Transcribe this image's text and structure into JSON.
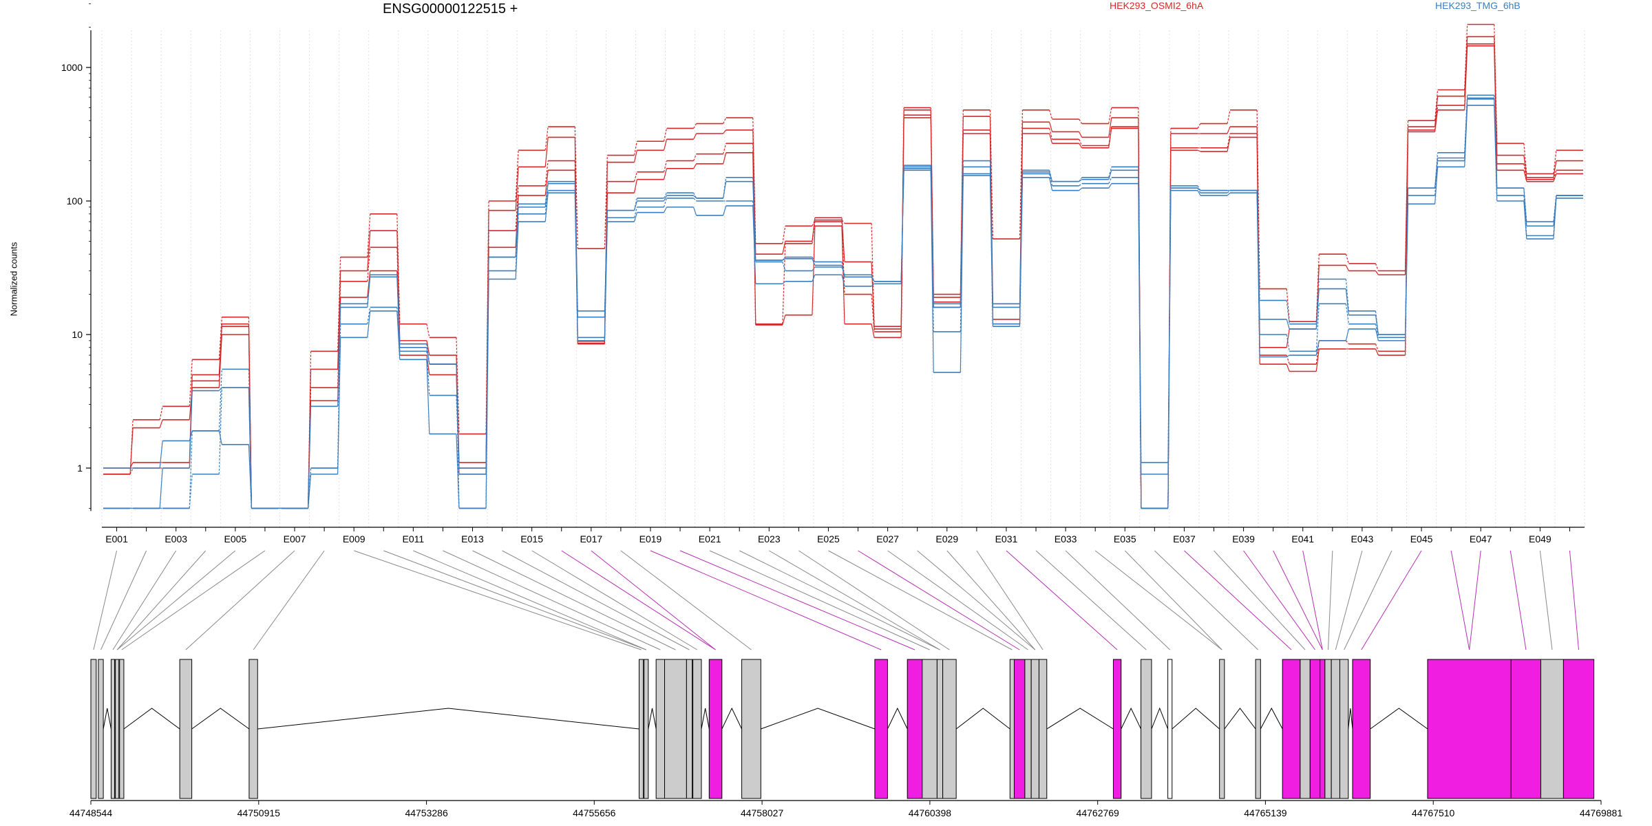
{
  "chart_data": {
    "type": "line",
    "title": "ENSG00000122515 +",
    "ylabel": "Normalized counts",
    "xlabel": "",
    "yscale": "log",
    "ylim": [
      0.5,
      3000
    ],
    "yticks": [
      1,
      10,
      100,
      1000
    ],
    "ytick_labels": [
      "1",
      "10",
      "100",
      "1000"
    ],
    "grid": "vertical-dotted",
    "legend": "top",
    "series_colors": {
      "HEK293_OSMI2_6hA": "#d62728",
      "HEK293_TMG_6hB": "#3a7ebf"
    },
    "exons": [
      "E001",
      "E002",
      "E003",
      "E004",
      "E005",
      "E006",
      "E007",
      "E008",
      "E009",
      "E010",
      "E011",
      "E012",
      "E013",
      "E014",
      "E015",
      "E016",
      "E017",
      "E018",
      "E019",
      "E020",
      "E021",
      "E022",
      "E023",
      "E024",
      "E025",
      "E026",
      "E027",
      "E028",
      "E029",
      "E030",
      "E031",
      "E032",
      "E033",
      "E034",
      "E035",
      "E036",
      "E037",
      "E038",
      "E039",
      "E040",
      "E041",
      "E042",
      "E043",
      "E044",
      "E045",
      "E046",
      "E047",
      "E048",
      "E049",
      "E050"
    ],
    "exon_tick_labels": [
      "E001",
      "E003",
      "E005",
      "E007",
      "E009",
      "E011",
      "E013",
      "E015",
      "E017",
      "E019",
      "E021",
      "E023",
      "E025",
      "E027",
      "E029",
      "E031",
      "E033",
      "E035",
      "E037",
      "E039",
      "E041",
      "E043",
      "E045",
      "E047",
      "E049"
    ],
    "series": [
      {
        "group": "HEK293_OSMI2_6hA",
        "style": "solid",
        "values": [
          0.9,
          2.0,
          2.3,
          4.0,
          10.0,
          0.5,
          0.5,
          3.2,
          19,
          30,
          7.0,
          5.0,
          0.9,
          45,
          110,
          170,
          8.5,
          115,
          145,
          175,
          190,
          230,
          11.8,
          14.0,
          65,
          12,
          9.5,
          420,
          16,
          320,
          12,
          320,
          270,
          250,
          350,
          0.5,
          240,
          235,
          300,
          6.0,
          5.3,
          7.8,
          7.8,
          7.0,
          330,
          480,
          1450,
          170,
          140,
          160
        ]
      },
      {
        "group": "HEK293_OSMI2_6hA",
        "style": "dashed",
        "values": [
          0.9,
          1.0,
          1.0,
          4.5,
          11.5,
          0.5,
          0.5,
          4.0,
          25,
          45,
          8.5,
          6.0,
          1.0,
          60,
          130,
          200,
          8.6,
          140,
          165,
          200,
          225,
          270,
          12.0,
          48,
          70,
          20,
          10.5,
          440,
          17.5,
          340,
          13,
          350,
          290,
          260,
          360,
          0.5,
          250,
          250,
          320,
          7.0,
          6.0,
          9.0,
          8.5,
          7.5,
          340,
          520,
          1500,
          190,
          145,
          170
        ]
      },
      {
        "group": "HEK293_OSMI2_6hA",
        "style": "solid",
        "values": [
          1.0,
          1.1,
          1.1,
          5.0,
          12.0,
          0.5,
          0.5,
          5.5,
          30,
          60,
          9.0,
          7.0,
          1.1,
          85,
          180,
          300,
          8.9,
          195,
          240,
          290,
          320,
          340,
          40,
          50,
          75,
          35,
          11.0,
          480,
          19,
          430,
          17,
          390,
          330,
          300,
          420,
          0.5,
          320,
          320,
          360,
          8.0,
          11,
          33,
          30,
          28,
          360,
          610,
          1700,
          220,
          150,
          200
        ]
      },
      {
        "group": "HEK293_OSMI2_6hA",
        "style": "dashed",
        "values": [
          0.9,
          2.3,
          2.9,
          6.5,
          13.5,
          0.5,
          0.5,
          7.5,
          38,
          80,
          12,
          9.5,
          1.8,
          100,
          240,
          360,
          44,
          220,
          280,
          350,
          380,
          420,
          48,
          65,
          72,
          68,
          11.5,
          500,
          20,
          480,
          52,
          480,
          410,
          380,
          500,
          0.5,
          350,
          380,
          480,
          22,
          12.5,
          40,
          34,
          30,
          400,
          680,
          2100,
          270,
          160,
          240
        ]
      },
      {
        "group": "HEK293_TMG_6hB",
        "style": "solid",
        "values": [
          1.0,
          1.0,
          1.6,
          1.9,
          1.5,
          0.5,
          0.5,
          0.9,
          9.5,
          15,
          6.5,
          1.8,
          0.5,
          26,
          70,
          115,
          9.0,
          70,
          82,
          90,
          78,
          92,
          24,
          25,
          28,
          23,
          24,
          170,
          5.2,
          155,
          11.5,
          150,
          120,
          125,
          135,
          0.5,
          120,
          110,
          115,
          6.8,
          7.0,
          9.0,
          11,
          9.0,
          95,
          180,
          520,
          100,
          52,
          105
        ]
      },
      {
        "group": "HEK293_TMG_6hB",
        "style": "dashed",
        "values": [
          0.5,
          0.5,
          0.5,
          0.9,
          4.0,
          0.5,
          0.5,
          1.0,
          12,
          16,
          7.5,
          3.5,
          0.9,
          30,
          80,
          120,
          9.5,
          75,
          90,
          105,
          100,
          100,
          35,
          30,
          32,
          28,
          25,
          175,
          10.5,
          160,
          12,
          160,
          130,
          135,
          150,
          0.5,
          125,
          115,
          120,
          10,
          7.5,
          17,
          12,
          9.5,
          110,
          200,
          580,
          110,
          55,
          110
        ]
      },
      {
        "group": "HEK293_TMG_6hB",
        "style": "solid",
        "values": [
          0.5,
          0.5,
          1.0,
          3.8,
          4.0,
          0.5,
          0.5,
          2.9,
          16,
          27,
          8.0,
          6.0,
          1.0,
          38,
          90,
          135,
          13.5,
          85,
          100,
          110,
          105,
          140,
          36,
          37,
          33,
          27,
          25,
          180,
          16,
          180,
          16,
          165,
          140,
          145,
          170,
          0.9,
          125,
          120,
          120,
          13,
          11,
          22,
          14,
          10,
          125,
          210,
          590,
          125,
          65,
          110
        ]
      },
      {
        "group": "HEK293_TMG_6hB",
        "style": "dashed",
        "values": [
          0.5,
          0.5,
          0.5,
          1.9,
          5.5,
          0.5,
          0.5,
          1.0,
          17,
          28,
          8.5,
          6.0,
          0.5,
          38,
          95,
          140,
          15,
          85,
          105,
          115,
          105,
          150,
          36,
          38,
          35,
          27,
          25,
          185,
          17,
          200,
          17,
          170,
          140,
          150,
          180,
          1.1,
          130,
          120,
          120,
          18,
          12,
          26,
          15,
          10,
          125,
          230,
          620,
          125,
          70,
          110
        ]
      }
    ],
    "genomic_axis": {
      "tick_labels": [
        "44748544",
        "44750915",
        "44753286",
        "44755656",
        "44758027",
        "44760398",
        "44762769",
        "44765139",
        "44767510",
        "44769881"
      ],
      "range": [
        44748544,
        44769881
      ]
    },
    "exon_model_colors": {
      "constitutive": "#cccccc",
      "significant": "#f01ee0",
      "unexpressed": "#ffffff"
    },
    "exon_model": [
      {
        "start": 44748544,
        "end": 44748620,
        "type": "constitutive"
      },
      {
        "start": 44748650,
        "end": 44748720,
        "type": "constitutive"
      },
      {
        "start": 44748830,
        "end": 44748880,
        "type": "constitutive"
      },
      {
        "start": 44748890,
        "end": 44748940,
        "type": "constitutive"
      },
      {
        "start": 44748950,
        "end": 44749010,
        "type": "constitutive"
      },
      {
        "start": 44749800,
        "end": 44749970,
        "type": "constitutive"
      },
      {
        "start": 44750780,
        "end": 44750900,
        "type": "constitutive"
      },
      {
        "start": 44756290,
        "end": 44756350,
        "type": "constitutive"
      },
      {
        "start": 44756360,
        "end": 44756420,
        "type": "constitutive"
      },
      {
        "start": 44756530,
        "end": 44756650,
        "type": "constitutive"
      },
      {
        "start": 44756650,
        "end": 44756960,
        "type": "constitutive"
      },
      {
        "start": 44756960,
        "end": 44757040,
        "type": "constitutive"
      },
      {
        "start": 44757050,
        "end": 44757170,
        "type": "constitutive"
      },
      {
        "start": 44757280,
        "end": 44757460,
        "type": "significant"
      },
      {
        "start": 44757740,
        "end": 44758010,
        "type": "constitutive"
      },
      {
        "start": 44759620,
        "end": 44759800,
        "type": "significant"
      },
      {
        "start": 44760080,
        "end": 44760290,
        "type": "significant"
      },
      {
        "start": 44760290,
        "end": 44760500,
        "type": "constitutive"
      },
      {
        "start": 44760500,
        "end": 44760580,
        "type": "constitutive"
      },
      {
        "start": 44760580,
        "end": 44760770,
        "type": "constitutive"
      },
      {
        "start": 44761530,
        "end": 44761590,
        "type": "constitutive"
      },
      {
        "start": 44761590,
        "end": 44761740,
        "type": "significant"
      },
      {
        "start": 44761740,
        "end": 44761830,
        "type": "constitutive"
      },
      {
        "start": 44761830,
        "end": 44761940,
        "type": "constitutive"
      },
      {
        "start": 44761940,
        "end": 44762050,
        "type": "constitutive"
      },
      {
        "start": 44762990,
        "end": 44763100,
        "type": "significant"
      },
      {
        "start": 44763380,
        "end": 44763530,
        "type": "constitutive"
      },
      {
        "start": 44763760,
        "end": 44763820,
        "type": "unexpressed"
      },
      {
        "start": 44764490,
        "end": 44764560,
        "type": "constitutive"
      },
      {
        "start": 44765000,
        "end": 44765070,
        "type": "constitutive"
      },
      {
        "start": 44765380,
        "end": 44765630,
        "type": "significant"
      },
      {
        "start": 44765630,
        "end": 44765770,
        "type": "constitutive"
      },
      {
        "start": 44765770,
        "end": 44765910,
        "type": "significant"
      },
      {
        "start": 44765910,
        "end": 44765980,
        "type": "significant"
      },
      {
        "start": 44765980,
        "end": 44766070,
        "type": "constitutive"
      },
      {
        "start": 44766070,
        "end": 44766190,
        "type": "constitutive"
      },
      {
        "start": 44766190,
        "end": 44766310,
        "type": "constitutive"
      },
      {
        "start": 44766370,
        "end": 44766620,
        "type": "significant"
      },
      {
        "start": 44767430,
        "end": 44768610,
        "type": "significant"
      },
      {
        "start": 44768610,
        "end": 44769030,
        "type": "significant"
      },
      {
        "start": 44769030,
        "end": 44769350,
        "type": "constitutive"
      },
      {
        "start": 44769350,
        "end": 44769780,
        "type": "significant"
      }
    ]
  }
}
